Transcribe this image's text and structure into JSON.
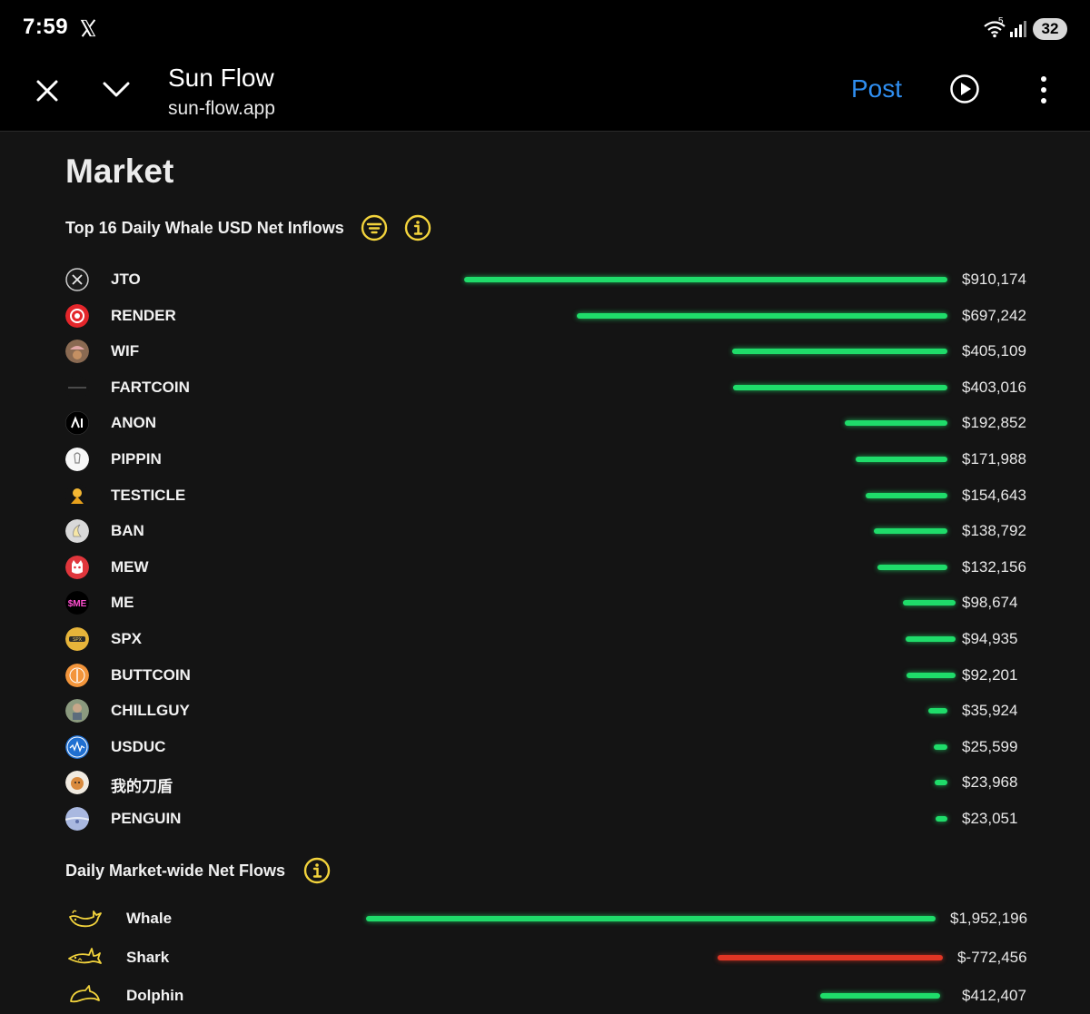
{
  "status_bar": {
    "time": "7:59",
    "wifi_badge": "5",
    "battery": "32"
  },
  "browser": {
    "title": "Sun Flow",
    "url": "sun-flow.app",
    "post_label": "Post"
  },
  "page": {
    "title": "Market",
    "inflows_title": "Top 16 Daily Whale USD Net Inflows",
    "marketwide_title": "Daily Market-wide Net Flows"
  },
  "colors": {
    "positive": "#1fdc6a",
    "negative": "#e03524",
    "accent_icon": "#f2d33c",
    "link": "#2f8ef0"
  },
  "chart_data": [
    {
      "type": "bar",
      "title": "Top 16 Daily Whale USD Net Inflows",
      "orientation": "horizontal",
      "categories": [
        "JTO",
        "RENDER",
        "WIF",
        "FARTCOIN",
        "ANON",
        "PIPPIN",
        "TESTICLE",
        "BAN",
        "MEW",
        "ME",
        "SPX",
        "BUTTCOIN",
        "CHILLGUY",
        "USDUC",
        "我的刀盾",
        "PENGUIN"
      ],
      "values": [
        910174,
        697242,
        405109,
        403016,
        192852,
        171988,
        154643,
        138792,
        132156,
        98674,
        94935,
        92201,
        35924,
        25599,
        23968,
        23051
      ],
      "labels": [
        "$910,174",
        "$697,242",
        "$405,109",
        "$403,016",
        "$192,852",
        "$171,988",
        "$154,643",
        "$138,792",
        "$132,156",
        "$98,674",
        "$94,935",
        "$92,201",
        "$35,924",
        "$25,599",
        "$23,968",
        "$23,051"
      ],
      "icons": [
        "jto-icon",
        "render-icon",
        "wif-icon",
        "fartcoin-icon",
        "anon-icon",
        "pippin-icon",
        "testicle-icon",
        "ban-icon",
        "mew-icon",
        "me-icon",
        "spx-icon",
        "buttcoin-icon",
        "chillguy-icon",
        "usduc-icon",
        "wodedaodun-icon",
        "penguin-icon"
      ],
      "grid": false
    },
    {
      "type": "bar",
      "title": "Daily Market-wide Net Flows",
      "orientation": "horizontal",
      "categories": [
        "Whale",
        "Shark",
        "Dolphin"
      ],
      "values": [
        1952196,
        -772456,
        412407
      ],
      "labels": [
        "$1,952,196",
        "$-772,456",
        "$412,407"
      ],
      "icons": [
        "whale-icon",
        "shark-icon",
        "dolphin-icon"
      ],
      "grid": false
    }
  ]
}
